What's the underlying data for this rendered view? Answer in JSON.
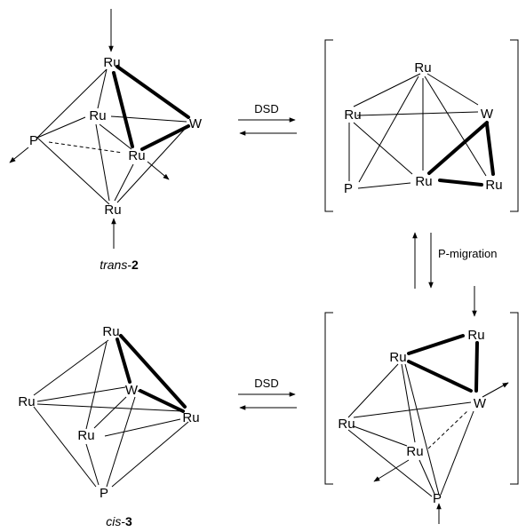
{
  "atoms": {
    "ru": "Ru",
    "w": "W",
    "p": "P"
  },
  "captions": {
    "trans_italic": "trans",
    "trans_suffix": "-",
    "trans_number": "2",
    "cis_italic": "cis",
    "cis_suffix": "-",
    "cis_number": "3"
  },
  "arrows": {
    "top_label": "DSD",
    "bottom_label": "DSD",
    "vertical_label": "P-migration"
  }
}
